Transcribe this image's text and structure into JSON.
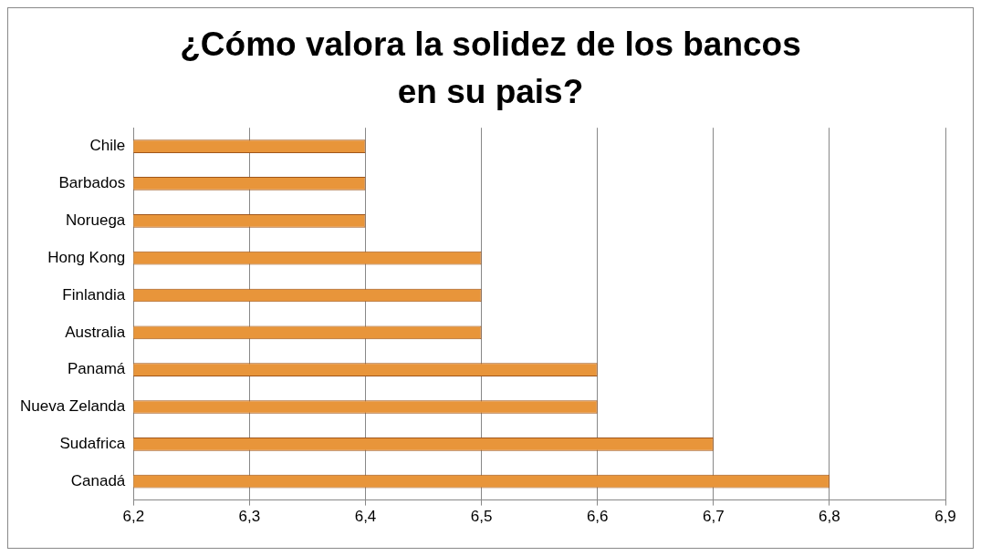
{
  "chart_data": {
    "type": "bar",
    "orientation": "horizontal",
    "title": "¿Cómo valora la solidez de los bancos en su pais?",
    "categories": [
      "Chile",
      "Barbados",
      "Noruega",
      "Hong Kong",
      "Finlandia",
      "Australia",
      "Panamá",
      "Nueva Zelanda",
      "Sudafrica",
      "Canadá"
    ],
    "values": [
      6.4,
      6.4,
      6.4,
      6.5,
      6.5,
      6.5,
      6.6,
      6.6,
      6.7,
      6.8
    ],
    "color": "#e8953a",
    "xlim": [
      6.2,
      6.9
    ],
    "xticks": [
      {
        "value": 6.2,
        "label": "6,2"
      },
      {
        "value": 6.3,
        "label": "6,3"
      },
      {
        "value": 6.4,
        "label": "6,4"
      },
      {
        "value": 6.5,
        "label": "6,5"
      },
      {
        "value": 6.6,
        "label": "6,6"
      },
      {
        "value": 6.7,
        "label": "6,7"
      },
      {
        "value": 6.8,
        "label": "6,8"
      },
      {
        "value": 6.9,
        "label": "6,9"
      }
    ],
    "grid": "x",
    "legend": false
  }
}
